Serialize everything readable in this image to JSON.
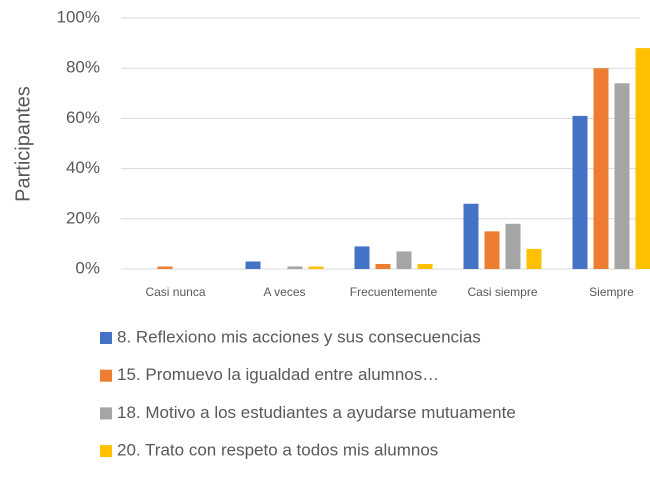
{
  "chart_data": {
    "type": "bar",
    "y_label": "Participantes",
    "categories": [
      "Casi nunca",
      "A veces",
      "Frecuentemente",
      "Casi siempre",
      "Siempre"
    ],
    "series": [
      {
        "name": "8. Reflexiono mis acciones y sus consecuencias",
        "color": "#4472c4",
        "values": [
          0,
          3,
          9,
          26,
          61
        ]
      },
      {
        "name": "15. Promuevo la igualdad entre alumnos…",
        "color": "#ed7d31",
        "values": [
          1,
          0,
          2,
          15,
          80
        ]
      },
      {
        "name": "18. Motivo a los estudiantes a ayudarse mutuamente",
        "color": "#a5a5a5",
        "values": [
          0,
          1,
          7,
          18,
          74
        ]
      },
      {
        "name": "20. Trato con respeto a todos mis alumnos",
        "color": "#ffc000",
        "values": [
          0,
          1,
          2,
          8,
          88
        ]
      }
    ],
    "ylim": [
      0,
      100
    ],
    "yticks": [
      {
        "value": 0,
        "label": "0%"
      },
      {
        "value": 20,
        "label": "20%"
      },
      {
        "value": 40,
        "label": "40%"
      },
      {
        "value": 60,
        "label": "60%"
      },
      {
        "value": 80,
        "label": "80%"
      },
      {
        "value": 100,
        "label": "100%"
      }
    ],
    "grid": true,
    "legend": "bottom"
  }
}
